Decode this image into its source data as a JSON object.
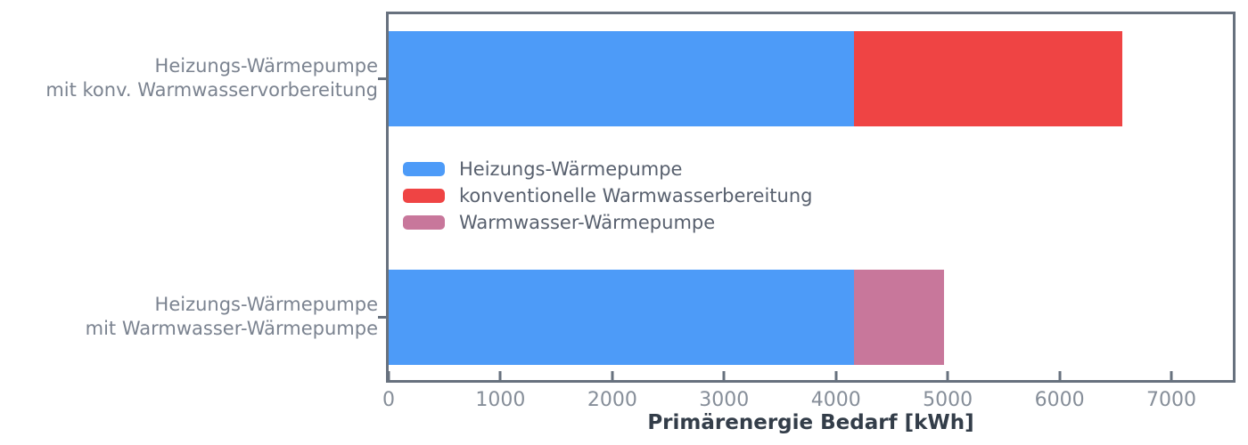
{
  "chart_data": {
    "type": "bar",
    "orientation": "horizontal",
    "stacked": true,
    "title": "",
    "xlabel": "Primärenergie Bedarf [kWh]",
    "ylabel": "",
    "xlim": [
      0,
      7550
    ],
    "xticks": [
      0,
      1000,
      2000,
      3000,
      4000,
      5000,
      6000,
      7000
    ],
    "grid": false,
    "legend_position": "upper-left-inside",
    "categories": [
      {
        "lines": [
          "Heizungs-Wärmepumpe",
          "mit konv. Warmwasservorbereitung"
        ]
      },
      {
        "lines": [
          "Heizungs-Wärmepumpe",
          "mit Warmwasser-Wärmepumpe"
        ]
      }
    ],
    "series": [
      {
        "name": "Heizungs-Wärmepumpe",
        "color": "#4D9BF8",
        "values": [
          4160,
          4160
        ]
      },
      {
        "name": "konventionelle Warmwasserbereitung",
        "color": "#EF4444",
        "values": [
          2400,
          0
        ]
      },
      {
        "name": "Warmwasser-Wärmepumpe",
        "color": "#C8779B",
        "values": [
          0,
          810
        ]
      }
    ],
    "stacked_totals": [
      6560,
      4970
    ]
  },
  "colors": {
    "spine": "#67717E",
    "tick_label": "#868E99",
    "category_label": "#7B8390",
    "legend_text": "#58606E",
    "axis_label": "#333D49",
    "background": "#FFFFFF"
  }
}
